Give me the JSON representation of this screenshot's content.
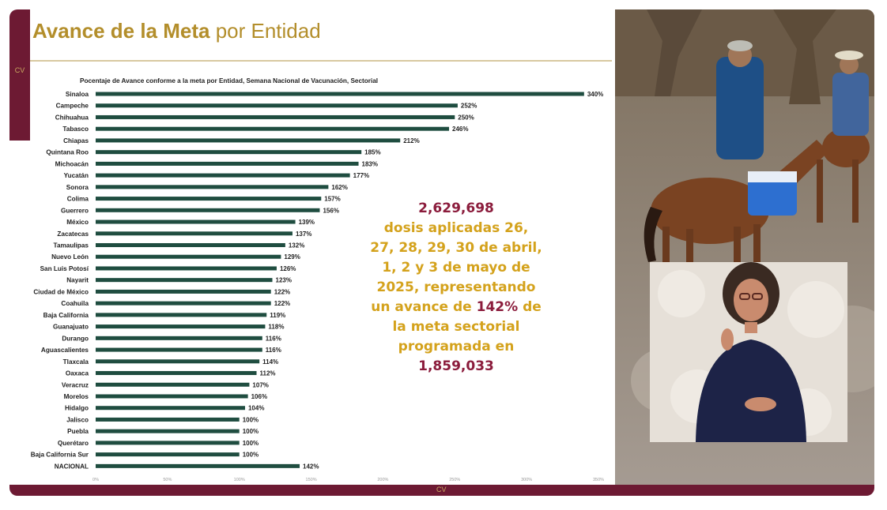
{
  "slide": {
    "title_bold": "Avance de la Meta",
    "title_rest": " por Entidad",
    "side_tab": "CV",
    "bottom_label": "CV"
  },
  "chart_data": {
    "type": "bar",
    "orientation": "horizontal",
    "title": "Pocentaje de Avance conforme a la meta por Entidad, Semana Nacional de Vacunación, Sectorial",
    "categories": [
      "Sinaloa",
      "Campeche",
      "Chihuahua",
      "Tabasco",
      "Chiapas",
      "Quintana Roo",
      "Michoacán",
      "Yucatán",
      "Sonora",
      "Colima",
      "Guerrero",
      "México",
      "Zacatecas",
      "Tamaulipas",
      "Nuevo León",
      "San Luis Potosí",
      "Nayarit",
      "Ciudad de México",
      "Coahuila",
      "Baja California",
      "Guanajuato",
      "Durango",
      "Aguascalientes",
      "Tlaxcala",
      "Oaxaca",
      "Veracruz",
      "Morelos",
      "Hidalgo",
      "Jalisco",
      "Puebla",
      "Querétaro",
      "Baja California Sur",
      "NACIONAL"
    ],
    "values": [
      340,
      252,
      250,
      246,
      212,
      185,
      183,
      177,
      162,
      157,
      156,
      139,
      137,
      132,
      129,
      126,
      123,
      122,
      122,
      119,
      118,
      116,
      116,
      114,
      112,
      107,
      106,
      104,
      100,
      100,
      100,
      100,
      142
    ],
    "value_labels": [
      "340%",
      "252%",
      "250%",
      "246%",
      "212%",
      "185%",
      "183%",
      "177%",
      "162%",
      "157%",
      "156%",
      "139%",
      "137%",
      "132%",
      "129%",
      "126%",
      "123%",
      "122%",
      "122%",
      "119%",
      "118%",
      "116%",
      "116%",
      "114%",
      "112%",
      "107%",
      "106%",
      "104%",
      "100%",
      "100%",
      "100%",
      "100%",
      "142%"
    ],
    "xlim": [
      0,
      350
    ],
    "x_ticks": [
      0,
      50,
      100,
      150,
      200,
      250,
      300,
      350
    ],
    "x_tick_labels": [
      "0%",
      "50%",
      "100%",
      "150%",
      "200%",
      "250%",
      "300%",
      "350%"
    ],
    "bar_color": "#1f4d40",
    "grid": false,
    "legend": "none"
  },
  "callout": {
    "line1": "2,629,698",
    "line2": "dosis aplicadas 26,",
    "line3": "27, 28, 29, 30 de abril,",
    "line4": "1, 2 y 3 de mayo de",
    "line5": "2025, representando",
    "line6_pre": "un avance de ",
    "line6_highlight": "142%",
    "line6_post": " de",
    "line7": "la meta sectorial",
    "line8": "programada en",
    "line9": "1,859,033",
    "color_gold": "#d4a21c",
    "color_maroon": "#8b1c3c"
  },
  "colors": {
    "maroon": "#6d1a33",
    "gold": "#b38e2b",
    "bar": "#1f4d40"
  }
}
